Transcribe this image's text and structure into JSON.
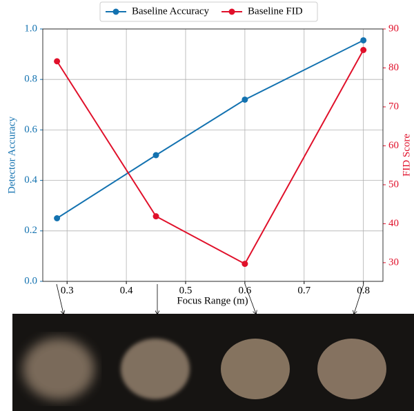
{
  "chart_data": {
    "type": "line",
    "x_label": "Focus Range (m)",
    "y_label": "Detector Accuracy",
    "y2_label": "FID Score",
    "x": [
      0.283,
      0.45,
      0.6,
      0.8
    ],
    "series": [
      {
        "name": "Baseline Accuracy",
        "color": "#1372b0",
        "values": [
          0.25,
          0.5,
          0.72,
          0.955
        ]
      },
      {
        "name": "Baseline FID",
        "color": "#e0102a",
        "axis": "y2",
        "values": [
          81.7,
          41.9,
          29.7,
          84.6
        ]
      }
    ],
    "xlim": [
      0.259,
      0.833
    ],
    "xticks": [
      0.3,
      0.4,
      0.5,
      0.6,
      0.7,
      0.8
    ],
    "ylim": [
      0,
      1
    ],
    "yticks": [
      {
        "value": 0,
        "label": "0.0"
      },
      {
        "value": 0.2,
        "label": "0.2"
      },
      {
        "value": 0.4,
        "label": "0.4"
      },
      {
        "value": 0.6,
        "label": "0.6"
      },
      {
        "value": 0.8,
        "label": "0.8"
      },
      {
        "value": 1,
        "label": "1.0"
      }
    ],
    "y2lim": [
      25.2,
      90
    ],
    "y2ticks": [
      30,
      40,
      50,
      60,
      70,
      80,
      90
    ],
    "grid": true,
    "legend": "top"
  }
}
